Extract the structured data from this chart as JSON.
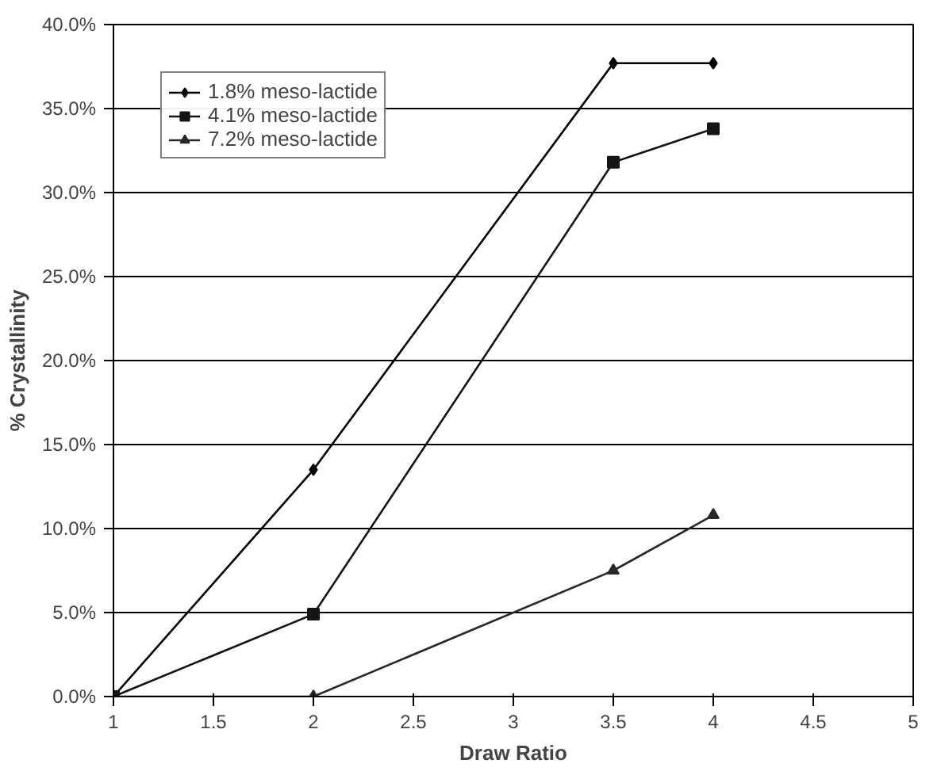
{
  "chart_data": {
    "type": "line",
    "xlabel": "Draw Ratio",
    "ylabel": "% Crystallinity",
    "x": [
      1,
      2,
      3.5,
      4
    ],
    "series": [
      {
        "name": "1.8% meso-lactide",
        "color": "#000000",
        "marker": "diamond",
        "values": [
          0,
          13.5,
          37.7,
          37.7
        ]
      },
      {
        "name": "4.1% meso-lactide",
        "color": "#141414",
        "marker": "square",
        "values": [
          0,
          4.9,
          31.8,
          33.8
        ]
      },
      {
        "name": "7.2% meso-lactide",
        "color": "#282828",
        "marker": "triangle",
        "values": [
          0,
          0,
          7.5,
          10.8
        ]
      }
    ],
    "xlim": [
      1,
      5
    ],
    "xticks": [
      1,
      1.5,
      2,
      2.5,
      3,
      3.5,
      4,
      4.5,
      5
    ],
    "ylim": [
      0,
      40
    ],
    "yticks": [
      {
        "value": 0,
        "label": "0.0%"
      },
      {
        "value": 5,
        "label": "5.0%"
      },
      {
        "value": 10,
        "label": "10.0%"
      },
      {
        "value": 15,
        "label": "15.0%"
      },
      {
        "value": 20,
        "label": "20.0%"
      },
      {
        "value": 25,
        "label": "25.0%"
      },
      {
        "value": 30,
        "label": "30.0%"
      },
      {
        "value": 35,
        "label": "35.0%"
      },
      {
        "value": 40,
        "label": "40.0%"
      }
    ],
    "grid": "y",
    "legend": "top left",
    "line_style": "solid"
  }
}
